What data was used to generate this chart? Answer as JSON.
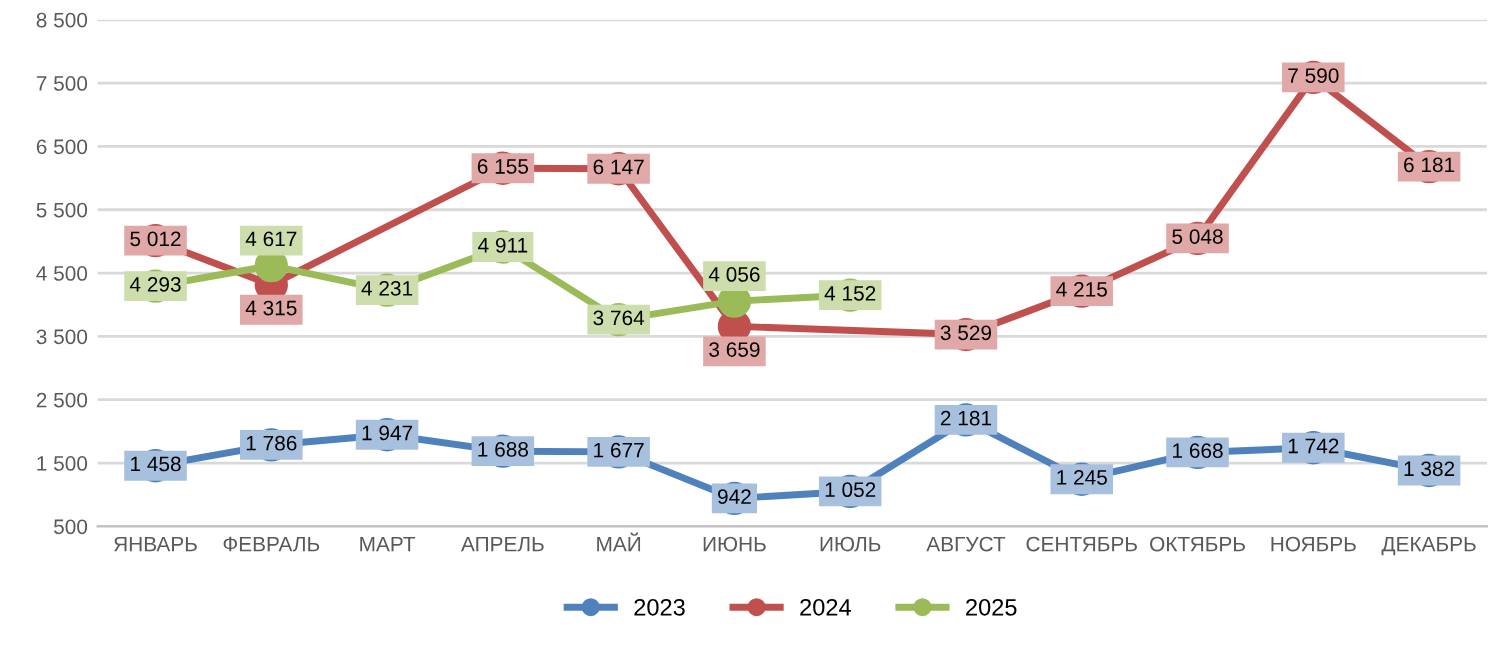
{
  "chart_data": {
    "type": "line",
    "categories": [
      "ЯНВАРЬ",
      "ФЕВРАЛЬ",
      "МАРТ",
      "АПРЕЛЬ",
      "МАЙ",
      "ИЮНЬ",
      "ИЮЛЬ",
      "АВГУСТ",
      "СЕНТЯБРЬ",
      "ОКТЯБРЬ",
      "НОЯБРЬ",
      "ДЕКАБРЬ"
    ],
    "series": [
      {
        "name": "2023",
        "color": "#4f81bd",
        "values": [
          1458,
          1786,
          1947,
          1688,
          1677,
          942,
          1052,
          2181,
          1245,
          1668,
          1742,
          1382
        ],
        "value_labels": [
          "1 458",
          "1 786",
          "1 947",
          "1 688",
          "1 677",
          "942",
          "1 052",
          "2 181",
          "1 245",
          "1 668",
          "1 742",
          "1 382"
        ]
      },
      {
        "name": "2024",
        "color": "#c0504d",
        "values": [
          5012,
          4315,
          null,
          6155,
          6147,
          3659,
          null,
          3529,
          4215,
          5048,
          7590,
          6181
        ],
        "value_labels": [
          "5 012",
          "4 315",
          null,
          "6 155",
          "6 147",
          "3 659",
          null,
          "3 529",
          "4 215",
          "5 048",
          "7 590",
          "6 181"
        ]
      },
      {
        "name": "2025",
        "color": "#9bbb59",
        "values": [
          4293,
          4617,
          4231,
          4911,
          3764,
          4056,
          4152,
          null,
          null,
          null,
          null,
          null
        ],
        "value_labels": [
          "4 293",
          "4 617",
          "4 231",
          "4 911",
          "3 764",
          "4 056",
          "4 152",
          null,
          null,
          null,
          null,
          null
        ]
      }
    ],
    "ylim": [
      500,
      8500
    ],
    "yticks": [
      {
        "value": 500,
        "label": "500"
      },
      {
        "value": 1500,
        "label": "1 500"
      },
      {
        "value": 2500,
        "label": "2 500"
      },
      {
        "value": 3500,
        "label": "3 500"
      },
      {
        "value": 4500,
        "label": "4 500"
      },
      {
        "value": 5500,
        "label": "5 500"
      },
      {
        "value": 6500,
        "label": "6 500"
      },
      {
        "value": 7500,
        "label": "7 500"
      },
      {
        "value": 8500,
        "label": "8 500"
      }
    ],
    "grid": "y",
    "legend": "bottom",
    "marker": "circle",
    "line_style": "solid"
  }
}
